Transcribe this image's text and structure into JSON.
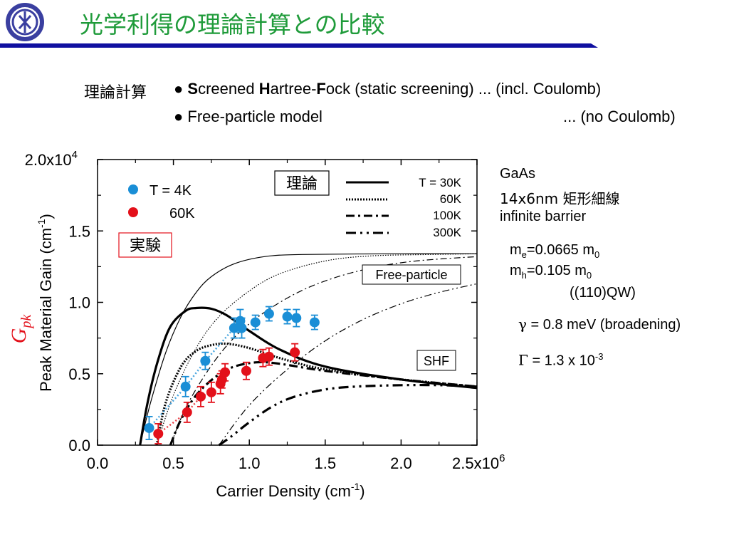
{
  "slide": {
    "title": "光学利得の理論計算との比較",
    "title_color": "#1f9b3a",
    "rule_color": "#1010a0"
  },
  "methods": {
    "label": "理論計算",
    "bullet": "●",
    "shf": {
      "s1": "S",
      "t1": "creened ",
      "s2": "H",
      "t2": "artree-",
      "s3": "F",
      "t3": "ock (static screening) ... (incl. Coulomb)"
    },
    "free": {
      "text": "Free-particle model",
      "note": "... (no Coulomb)"
    }
  },
  "side_notes": {
    "material": "GaAs",
    "dimensions": "14x6nm 矩形細線",
    "barrier": "infinite barrier",
    "me": {
      "base": "m",
      "sub": "e",
      "value": "=0.0665 m",
      "unit_sub": "0"
    },
    "mh": {
      "base": "m",
      "sub": "h",
      "value": "=0.105 m",
      "unit_sub": "0"
    },
    "orientation": "((110)QW)",
    "broadening": {
      "symbol": "γ",
      "text": " = 0.8 meV (broadening)"
    },
    "gamma_cap": {
      "symbol": "Γ",
      "text": " = 1.3 x 10",
      "exp": "-3"
    }
  },
  "chart_data": {
    "type": "scatter",
    "xlabel": "Carrier Density (cm",
    "xlabel_sup": "-1",
    "xlabel_end": ")",
    "ylabel": "Peak Material Gain (cm",
    "ylabel_sup": "-1",
    "ylabel_end": ")",
    "gpk": {
      "main": "G",
      "sub": "pk"
    },
    "xlim": [
      0,
      2.5
    ],
    "ylim": [
      0,
      2.0
    ],
    "x_ticks": [
      "0.0",
      "0.5",
      "1.0",
      "1.5",
      "2.0",
      "2.5x10"
    ],
    "x_tick_exp": "6",
    "y_ticks": [
      "0.0",
      "0.5",
      "1.0",
      "1.5",
      "2.0x10"
    ],
    "y_tick_exp": "4",
    "x_tick_values": [
      0,
      0.5,
      1.0,
      1.5,
      2.0,
      2.5
    ],
    "y_tick_values": [
      0,
      0.5,
      1.0,
      1.5,
      2.0
    ],
    "theory_box": "理論",
    "exp_box": "実験",
    "free_label": "Free-particle",
    "shf_label": "SHF",
    "theory_legend": [
      {
        "label": "T = 30K",
        "style": "solid"
      },
      {
        "label": "60K",
        "style": "dotted"
      },
      {
        "label": "100K",
        "style": "dashdot"
      },
      {
        "label": "300K",
        "style": "dashdotdot"
      }
    ],
    "exp_legend": [
      {
        "label": "T = 4K",
        "color": "#1a8ed6"
      },
      {
        "label": "60K",
        "color": "#e3101a"
      }
    ],
    "exp_series": [
      {
        "name": "T = 4K",
        "color": "#1a8ed6",
        "points": [
          [
            0.34,
            0.12,
            0.08
          ],
          [
            0.58,
            0.41,
            0.07
          ],
          [
            0.71,
            0.59,
            0.06
          ],
          [
            0.9,
            0.82,
            0.07
          ],
          [
            0.94,
            0.87,
            0.08
          ],
          [
            0.95,
            0.82,
            0.07
          ],
          [
            1.04,
            0.86,
            0.05
          ],
          [
            1.13,
            0.92,
            0.05
          ],
          [
            1.25,
            0.9,
            0.05
          ],
          [
            1.31,
            0.89,
            0.06
          ],
          [
            1.43,
            0.86,
            0.05
          ]
        ]
      },
      {
        "name": "60K",
        "color": "#e3101a",
        "points": [
          [
            0.4,
            0.08,
            0.07
          ],
          [
            0.59,
            0.23,
            0.07
          ],
          [
            0.68,
            0.34,
            0.07
          ],
          [
            0.75,
            0.37,
            0.07
          ],
          [
            0.81,
            0.43,
            0.07
          ],
          [
            0.82,
            0.46,
            0.06
          ],
          [
            0.84,
            0.51,
            0.06
          ],
          [
            0.98,
            0.52,
            0.06
          ],
          [
            1.09,
            0.61,
            0.06
          ],
          [
            1.13,
            0.62,
            0.06
          ],
          [
            1.3,
            0.65,
            0.06
          ]
        ]
      }
    ],
    "theory_curves": [
      {
        "model": "SHF",
        "temp": "30K",
        "style": "solid",
        "width": 3.2,
        "points": [
          [
            0.28,
            0
          ],
          [
            0.33,
            0.3
          ],
          [
            0.4,
            0.6
          ],
          [
            0.48,
            0.83
          ],
          [
            0.58,
            0.94
          ],
          [
            0.65,
            0.96
          ],
          [
            0.75,
            0.955
          ],
          [
            0.85,
            0.91
          ],
          [
            1.0,
            0.8
          ],
          [
            1.2,
            0.67
          ],
          [
            1.5,
            0.55
          ],
          [
            2.0,
            0.46
          ],
          [
            2.5,
            0.4
          ]
        ]
      },
      {
        "model": "SHF",
        "temp": "60K",
        "style": "dotted",
        "width": 3.2,
        "points": [
          [
            0.39,
            0
          ],
          [
            0.45,
            0.3
          ],
          [
            0.55,
            0.55
          ],
          [
            0.65,
            0.66
          ],
          [
            0.75,
            0.7
          ],
          [
            0.85,
            0.71
          ],
          [
            1.0,
            0.68
          ],
          [
            1.2,
            0.61
          ],
          [
            1.5,
            0.53
          ],
          [
            2.0,
            0.46
          ],
          [
            2.5,
            0.41
          ]
        ]
      },
      {
        "model": "SHF",
        "temp": "100K",
        "style": "dashdot",
        "width": 3.2,
        "points": [
          [
            0.48,
            0
          ],
          [
            0.55,
            0.18
          ],
          [
            0.65,
            0.35
          ],
          [
            0.78,
            0.48
          ],
          [
            0.9,
            0.55
          ],
          [
            1.05,
            0.58
          ],
          [
            1.2,
            0.57
          ],
          [
            1.5,
            0.52
          ],
          [
            2.0,
            0.46
          ],
          [
            2.5,
            0.41
          ]
        ]
      },
      {
        "model": "SHF",
        "temp": "300K",
        "style": "dashdotdot",
        "width": 3.2,
        "points": [
          [
            0.8,
            0
          ],
          [
            0.88,
            0.06
          ],
          [
            1.0,
            0.16
          ],
          [
            1.15,
            0.27
          ],
          [
            1.3,
            0.34
          ],
          [
            1.5,
            0.39
          ],
          [
            1.7,
            0.41
          ],
          [
            2.0,
            0.42
          ],
          [
            2.25,
            0.42
          ],
          [
            2.5,
            0.41
          ]
        ]
      },
      {
        "model": "Free-particle",
        "temp": "30K",
        "style": "solid",
        "width": 1.2,
        "points": [
          [
            0.28,
            0
          ],
          [
            0.35,
            0.3
          ],
          [
            0.45,
            0.65
          ],
          [
            0.55,
            0.9
          ],
          [
            0.65,
            1.07
          ],
          [
            0.75,
            1.18
          ],
          [
            0.9,
            1.27
          ],
          [
            1.1,
            1.32
          ],
          [
            1.35,
            1.335
          ],
          [
            2.0,
            1.34
          ],
          [
            2.5,
            1.34
          ]
        ]
      },
      {
        "model": "Free-particle",
        "temp": "60K",
        "style": "dotted",
        "width": 1.2,
        "points": [
          [
            0.39,
            0
          ],
          [
            0.5,
            0.35
          ],
          [
            0.65,
            0.68
          ],
          [
            0.8,
            0.9
          ],
          [
            1.0,
            1.08
          ],
          [
            1.2,
            1.2
          ],
          [
            1.5,
            1.29
          ],
          [
            1.8,
            1.325
          ],
          [
            2.2,
            1.335
          ],
          [
            2.5,
            1.34
          ]
        ]
      },
      {
        "model": "Free-particle",
        "temp": "100K",
        "style": "dashdot",
        "width": 1.2,
        "points": [
          [
            0.48,
            0
          ],
          [
            0.6,
            0.3
          ],
          [
            0.8,
            0.63
          ],
          [
            1.0,
            0.85
          ],
          [
            1.25,
            1.03
          ],
          [
            1.5,
            1.15
          ],
          [
            1.8,
            1.24
          ],
          [
            2.1,
            1.29
          ],
          [
            2.5,
            1.32
          ]
        ]
      },
      {
        "model": "Free-particle",
        "temp": "300K",
        "style": "dashdotdot",
        "width": 1.2,
        "points": [
          [
            0.8,
            0
          ],
          [
            1.0,
            0.28
          ],
          [
            1.25,
            0.53
          ],
          [
            1.5,
            0.73
          ],
          [
            1.75,
            0.88
          ],
          [
            2.0,
            0.99
          ],
          [
            2.25,
            1.07
          ],
          [
            2.5,
            1.13
          ]
        ]
      }
    ]
  }
}
